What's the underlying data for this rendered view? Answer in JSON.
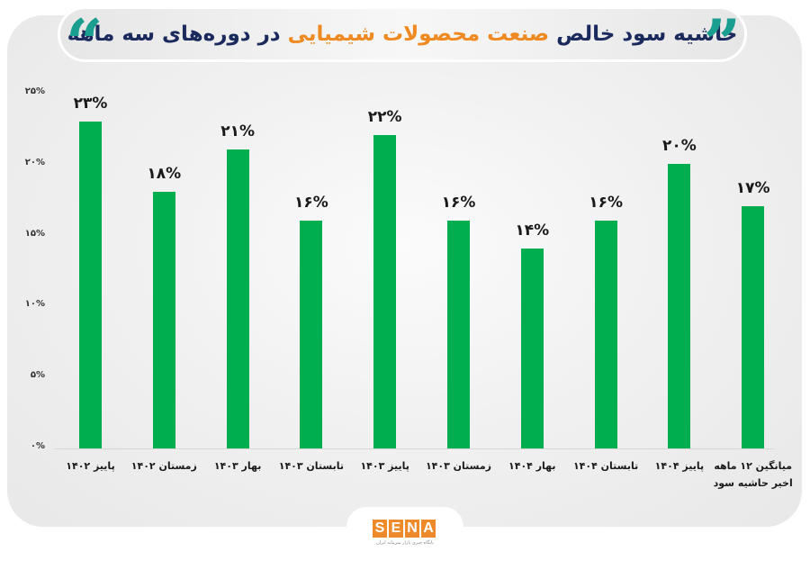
{
  "title": {
    "part1": "حاشیه سود خالص",
    "highlight": "صنعت محصولات شیمیایی",
    "part2": "در دوره‌های سه ماهه",
    "quote_open": "”",
    "quote_close": "“"
  },
  "colors": {
    "bar": "#00ad4f",
    "title_dark": "#1b2a5c",
    "title_highlight": "#ee8a21",
    "quote_teal": "#1a9e8f",
    "logo_orange": "#ef8a2a"
  },
  "y_axis": {
    "ticks": [
      "۲۵%",
      "۲۰%",
      "۱۵%",
      "۱۰%",
      "۵%",
      "۰%"
    ]
  },
  "chart_data": {
    "type": "bar",
    "title": "حاشیه سود خالص صنعت محصولات شیمیایی در دوره‌های سه ماهه",
    "xlabel": "",
    "ylabel": "",
    "ylim": [
      0,
      25
    ],
    "yticks": [
      0,
      5,
      10,
      15,
      20,
      25
    ],
    "grid": false,
    "legend": null,
    "categories": [
      "پاییز ۱۴۰۲",
      "زمستان ۱۴۰۲",
      "بهار ۱۴۰۳",
      "تابستان ۱۴۰۳",
      "پاییز ۱۴۰۳",
      "زمستان ۱۴۰۳",
      "بهار ۱۴۰۴",
      "تابستان ۱۴۰۴",
      "پاییز ۱۴۰۴",
      "میانگین ۱۲ ماهه اخیر حاشیه سود"
    ],
    "values": [
      23,
      18,
      21,
      16,
      22,
      16,
      14,
      16,
      20,
      17
    ],
    "value_labels": [
      "۲۳%",
      "۱۸%",
      "۲۱%",
      "۱۶%",
      "۲۲%",
      "۱۶%",
      "۱۴%",
      "۱۶%",
      "۲۰%",
      "۱۷%"
    ],
    "x_labels": [
      {
        "line1": "پاییز ۱۴۰۲",
        "line2": ""
      },
      {
        "line1": "زمستان ۱۴۰۲",
        "line2": ""
      },
      {
        "line1": "بهار ۱۴۰۳",
        "line2": ""
      },
      {
        "line1": "تابستان ۱۴۰۳",
        "line2": ""
      },
      {
        "line1": "پاییز ۱۴۰۳",
        "line2": ""
      },
      {
        "line1": "زمستان ۱۴۰۳",
        "line2": ""
      },
      {
        "line1": "بهار ۱۴۰۴",
        "line2": ""
      },
      {
        "line1": "تابستان ۱۴۰۴",
        "line2": ""
      },
      {
        "line1": "پاییز ۱۴۰۴",
        "line2": ""
      },
      {
        "line1": "میانگین ۱۲ ماهه",
        "line2": "اخیر حاشیه سود"
      }
    ]
  },
  "logo": {
    "letters": [
      "S",
      "E",
      "N",
      "A"
    ],
    "tagline": "پایگاه خبری بازار سرمایه ایران"
  }
}
